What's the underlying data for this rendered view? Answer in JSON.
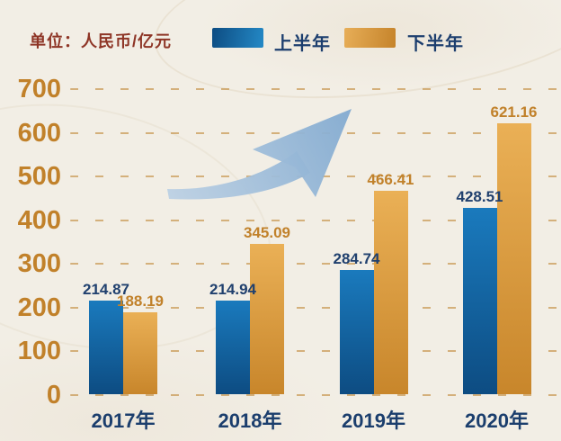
{
  "legend": {
    "unit_label": "单位：人民币/亿元",
    "items": [
      {
        "label": "上半年",
        "swatch": "blue-gradient"
      },
      {
        "label": "下半年",
        "swatch": "gold-gradient"
      }
    ]
  },
  "colors": {
    "background": "#f2eee5",
    "unit_text_maroon": "#8e3526",
    "navy_text": "#1c3e6e",
    "axis_gold": "#c1812a",
    "grid_gold_dash": "#c18a3a",
    "bar_blue_top": "#1a7abd",
    "bar_blue_bottom": "#0d4c82",
    "bar_gold_top": "#eab056",
    "bar_gold_bottom": "#c8862b",
    "arrow_blue": "#8cb0d5"
  },
  "chart_data": {
    "type": "bar",
    "title": "",
    "xlabel": "",
    "ylabel": "单位：人民币/亿元",
    "categories": [
      "2017年",
      "2018年",
      "2019年",
      "2020年"
    ],
    "series": [
      {
        "name": "上半年",
        "values": [
          214.87,
          214.94,
          284.74,
          428.51
        ],
        "color": "#1a7abd",
        "value_label_color": "#20406e"
      },
      {
        "name": "下半年",
        "values": [
          188.19,
          345.09,
          466.41,
          621.16
        ],
        "color": "#eab056",
        "value_label_color": "#c1812a"
      }
    ],
    "ylim": [
      0,
      700
    ],
    "yticks": [
      0,
      100,
      200,
      300,
      400,
      500,
      600,
      700
    ],
    "grid": "dashed horizontal gold lines",
    "legend_position": "top",
    "annotations": [
      "light blue upward swoosh growth arrow over chart center"
    ]
  }
}
